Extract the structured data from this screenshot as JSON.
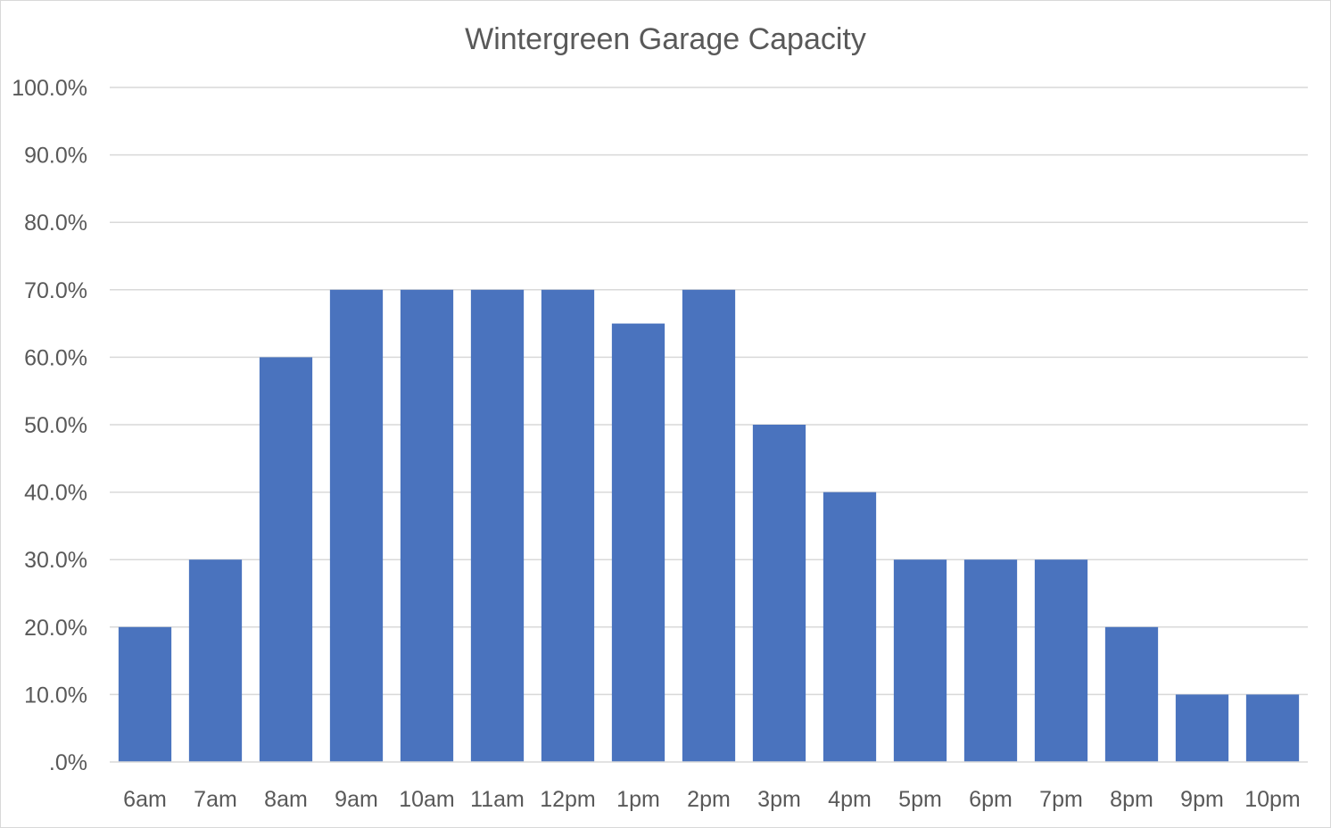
{
  "chart_data": {
    "type": "bar",
    "title": "Wintergreen Garage Capacity",
    "xlabel": "",
    "ylabel": "",
    "categories": [
      "6am",
      "7am",
      "8am",
      "9am",
      "10am",
      "11am",
      "12pm",
      "1pm",
      "2pm",
      "3pm",
      "4pm",
      "5pm",
      "6pm",
      "7pm",
      "8pm",
      "9pm",
      "10pm"
    ],
    "values": [
      20,
      30,
      60,
      70,
      70,
      70,
      70,
      65,
      70,
      50,
      40,
      30,
      30,
      30,
      20,
      10,
      10
    ],
    "ylim": [
      0,
      100
    ],
    "y_ticks": [
      0,
      10,
      20,
      30,
      40,
      50,
      60,
      70,
      80,
      90,
      100
    ],
    "y_tick_labels": [
      ".0%",
      "10.0%",
      "20.0%",
      "30.0%",
      "40.0%",
      "50.0%",
      "60.0%",
      "70.0%",
      "80.0%",
      "90.0%",
      "100.0%"
    ],
    "grid": true,
    "legend": "none",
    "bar_color": "#4a73be"
  }
}
